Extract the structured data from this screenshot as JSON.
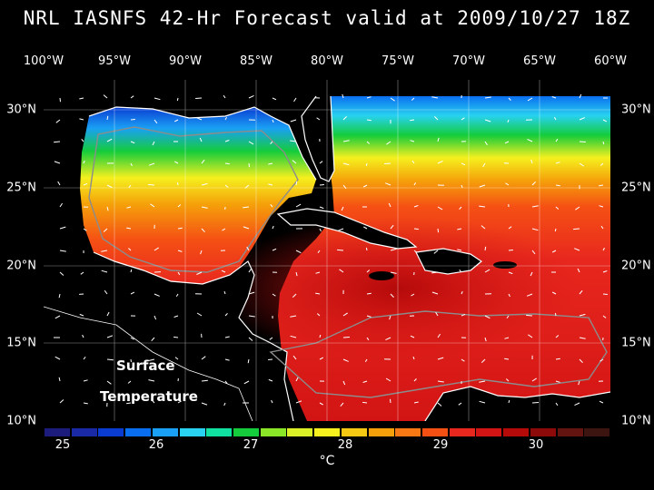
{
  "title": "NRL IASNFS  42-Hr Forecast valid at 2009/10/27 18Z",
  "map": {
    "lon_labels": [
      "100°W",
      "95°W",
      "90°W",
      "85°W",
      "80°W",
      "75°W",
      "70°W",
      "65°W",
      "60°W"
    ],
    "lat_labels": [
      "30°N",
      "25°N",
      "20°N",
      "15°N",
      "10°N"
    ],
    "label_line1": "Surface",
    "label_line2": "Temperature",
    "lon_range": [
      -100,
      -60
    ],
    "lat_range": [
      10,
      31
    ],
    "grid": true
  },
  "colorbar": {
    "ticks": [
      "25",
      "26",
      "27",
      "28",
      "29",
      "30"
    ],
    "unit": "°C",
    "colors": [
      "#1c1c7c",
      "#1a2aa6",
      "#0a3cd2",
      "#0a6ef0",
      "#1aa0f5",
      "#28d2f0",
      "#10e0a0",
      "#14cc3c",
      "#8ce628",
      "#dcf028",
      "#f5f01e",
      "#f5c814",
      "#f5a00a",
      "#f57814",
      "#f55014",
      "#e8281e",
      "#d21414",
      "#b40a0a",
      "#8c0a0a",
      "#641410",
      "#3c1410"
    ]
  },
  "colors": {
    "land": "#000000",
    "coast": "#ffffff",
    "isobath": "#8c8c8c",
    "grid": "#ffffff"
  }
}
